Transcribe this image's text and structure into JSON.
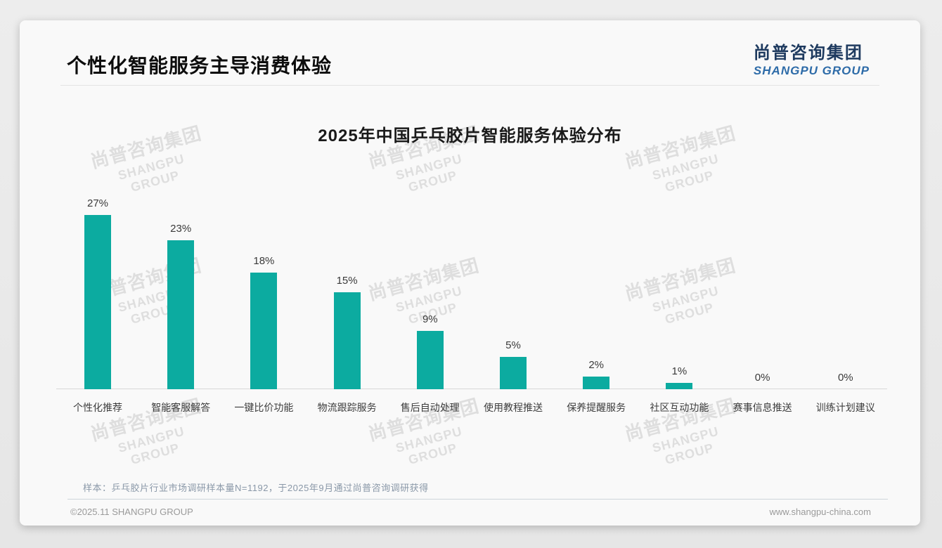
{
  "header": {
    "title": "个性化智能服务主导消费体验",
    "logo_cn": "尚普咨询集团",
    "logo_en": "SHANGPU GROUP"
  },
  "watermark": {
    "line1": "尚普咨询集团",
    "line2": "SHANGPU GROUP"
  },
  "chart_data": {
    "type": "bar",
    "title": "2025年中国乒乓胶片智能服务体验分布",
    "categories": [
      "个性化推荐",
      "智能客服解答",
      "一键比价功能",
      "物流跟踪服务",
      "售后自动处理",
      "使用教程推送",
      "保养提醒服务",
      "社区互动功能",
      "赛事信息推送",
      "训练计划建议"
    ],
    "values": [
      27,
      23,
      18,
      15,
      9,
      5,
      2,
      1,
      0,
      0
    ],
    "unit": "%",
    "bar_color": "#0caba0",
    "ylim": [
      0,
      30
    ],
    "grid": false,
    "legend": "none",
    "value_labels": true
  },
  "footnote": "样本：乒乓胶片行业市场调研样本量N=1192，于2025年9月通过尚普咨询调研获得",
  "footer": {
    "left": "©2025.11 SHANGPU GROUP",
    "right": "www.shangpu-china.com"
  }
}
